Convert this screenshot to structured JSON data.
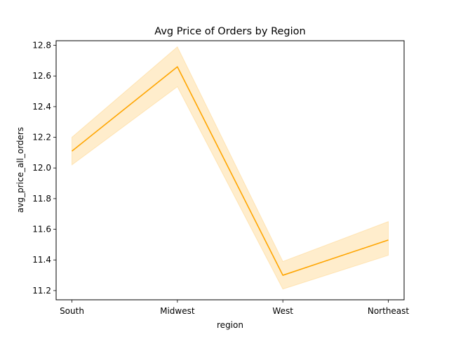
{
  "chart_data": {
    "type": "line",
    "title": "Avg Price of Orders by Region",
    "xlabel": "region",
    "ylabel": "avg_price_all_orders",
    "categories": [
      "South",
      "Midwest",
      "West",
      "Northeast"
    ],
    "series": [
      {
        "values": [
          12.11,
          12.66,
          11.3,
          11.53
        ],
        "ci_lower": [
          12.02,
          12.53,
          11.21,
          11.43
        ],
        "ci_upper": [
          12.2,
          12.79,
          11.39,
          11.65
        ]
      }
    ],
    "yticks": [
      "11.2",
      "11.4",
      "11.6",
      "11.8",
      "12.0",
      "12.2",
      "12.4",
      "12.6",
      "12.8"
    ],
    "ylim": [
      11.14,
      12.83
    ],
    "grid": false,
    "colors": {
      "line": "#ffa500",
      "band": "#ffa500"
    }
  }
}
